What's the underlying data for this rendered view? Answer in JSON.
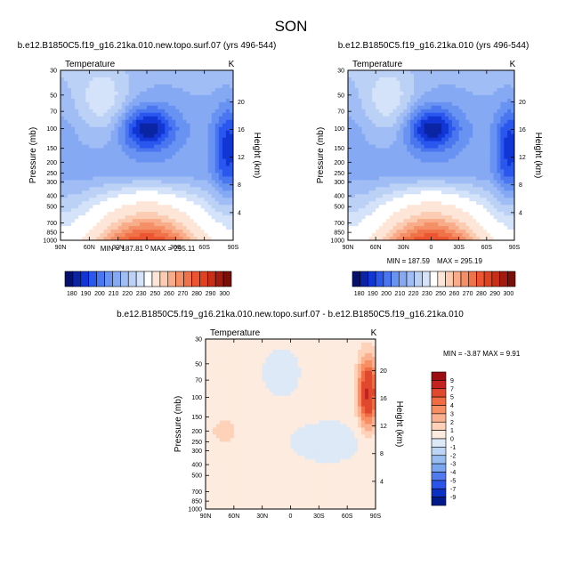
{
  "figure": {
    "title": "SON"
  },
  "chart_data": [
    {
      "type": "contour",
      "title": "b.e12.B1850C5.f19_g16.21ka.010.new.topo.surf.07 (yrs 496-544)",
      "variable_label": "Temperature",
      "units_label": "K",
      "ylabel": "Pressure (mb)",
      "y2label": "Height (km)",
      "x_ticks": [
        "90N",
        "60N",
        "30N",
        "0",
        "30S",
        "60S",
        "90S"
      ],
      "x_values": [
        90,
        60,
        30,
        0,
        -30,
        -60,
        -90
      ],
      "y_ticks": [
        "30",
        "50",
        "70",
        "100",
        "150",
        "200",
        "250",
        "300",
        "400",
        "500",
        "700",
        "850",
        "1000"
      ],
      "y_values": [
        30,
        50,
        70,
        100,
        150,
        200,
        250,
        300,
        400,
        500,
        700,
        850,
        1000
      ],
      "height_ticks": [
        "20",
        "16",
        "12",
        "8",
        "4"
      ],
      "height_values": [
        20,
        16,
        12,
        8,
        4
      ],
      "min_label": "MIN = 187.81",
      "max_label": "MAX = 295.11",
      "min": 187.81,
      "max": 295.11,
      "colorbar_levels": [
        180,
        185,
        190,
        195,
        200,
        205,
        210,
        215,
        220,
        225,
        230,
        240,
        250,
        255,
        260,
        265,
        270,
        275,
        280,
        285,
        290,
        295,
        300
      ],
      "colorbar_labels": [
        "180",
        "190",
        "200",
        "210",
        "220",
        "230",
        "250",
        "260",
        "270",
        "280",
        "290",
        "300"
      ]
    },
    {
      "type": "contour",
      "title": "b.e12.B1850C5.f19_g16.21ka.010 (yrs 496-544)",
      "variable_label": "Temperature",
      "units_label": "K",
      "ylabel": "Pressure (mb)",
      "y2label": "Height (km)",
      "x_ticks": [
        "90N",
        "60N",
        "30N",
        "0",
        "30S",
        "60S",
        "90S"
      ],
      "x_values": [
        90,
        60,
        30,
        0,
        -30,
        -60,
        -90
      ],
      "y_ticks": [
        "30",
        "50",
        "70",
        "100",
        "150",
        "200",
        "250",
        "300",
        "400",
        "500",
        "700",
        "850",
        "1000"
      ],
      "y_values": [
        30,
        50,
        70,
        100,
        150,
        200,
        250,
        300,
        400,
        500,
        700,
        850,
        1000
      ],
      "height_ticks": [
        "20",
        "16",
        "12",
        "8",
        "4"
      ],
      "height_values": [
        20,
        16,
        12,
        8,
        4
      ],
      "min_label": "MIN = 187.59",
      "max_label": "MAX = 295.19",
      "min": 187.59,
      "max": 295.19,
      "colorbar_levels": [
        180,
        185,
        190,
        195,
        200,
        205,
        210,
        215,
        220,
        225,
        230,
        240,
        250,
        255,
        260,
        265,
        270,
        275,
        280,
        285,
        290,
        295,
        300
      ],
      "colorbar_labels": [
        "180",
        "190",
        "200",
        "210",
        "220",
        "230",
        "250",
        "260",
        "270",
        "280",
        "290",
        "300"
      ]
    },
    {
      "type": "contour",
      "title": "b.e12.B1850C5.f19_g16.21ka.010.new.topo.surf.07 - b.e12.B1850C5.f19_g16.21ka.010",
      "variable_label": "Temperature",
      "units_label": "K",
      "ylabel": "Pressure (mb)",
      "y2label": "Height (km)",
      "x_ticks": [
        "90N",
        "60N",
        "30N",
        "0",
        "30S",
        "60S",
        "90S"
      ],
      "x_values": [
        90,
        60,
        30,
        0,
        -30,
        -60,
        -90
      ],
      "y_ticks": [
        "30",
        "50",
        "70",
        "100",
        "150",
        "200",
        "250",
        "300",
        "400",
        "500",
        "700",
        "850",
        "1000"
      ],
      "y_values": [
        30,
        50,
        70,
        100,
        150,
        200,
        250,
        300,
        400,
        500,
        700,
        850,
        1000
      ],
      "height_ticks": [
        "20",
        "16",
        "12",
        "8",
        "4"
      ],
      "height_values": [
        20,
        16,
        12,
        8,
        4
      ],
      "minmax_label": "MIN =  -3.87   MAX =   9.91",
      "min": -3.87,
      "max": 9.91,
      "colorbar_labels": [
        "9",
        "7",
        "5",
        "4",
        "3",
        "2",
        "1",
        "0",
        "-1",
        "-2",
        "-3",
        "-4",
        "-5",
        "-7",
        "-9"
      ],
      "colorbar_colors": [
        "#9b0d12",
        "#c3221f",
        "#e0492e",
        "#f06c43",
        "#f78e64",
        "#fbb08f",
        "#fdd2b9",
        "#fdebdf",
        "#dde9f7",
        "#bdd5f4",
        "#97bdf2",
        "#7aa6f0",
        "#507bf0",
        "#2854e8",
        "#0c2fc4",
        "#001a8c"
      ]
    }
  ],
  "palette": {
    "temperature": [
      "#06106d",
      "#0a24a3",
      "#1236d6",
      "#2a57ee",
      "#4a77f0",
      "#6993f2",
      "#86a9f4",
      "#a0bdf5",
      "#bcd1f6",
      "#d5e3fa",
      "#ffffff",
      "#fde6d8",
      "#fbcbb2",
      "#f8ac8a",
      "#f48f67",
      "#f07248",
      "#ec5530",
      "#e0421f",
      "#c92e16",
      "#a21b10",
      "#7a0e09"
    ],
    "diff": [
      "#9b0d12",
      "#c3221f",
      "#e0492e",
      "#f06c43",
      "#f78e64",
      "#fbb08f",
      "#fdd2b9",
      "#fdebdf",
      "#dde9f7",
      "#bdd5f4",
      "#97bdf2",
      "#7aa6f0",
      "#507bf0",
      "#2854e8",
      "#0c2fc4",
      "#001a8c"
    ]
  }
}
